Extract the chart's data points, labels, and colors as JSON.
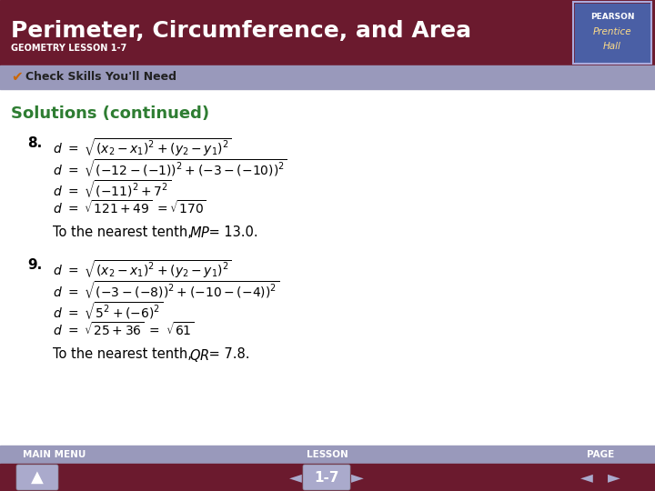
{
  "title": "Perimeter, Circumference, and Area",
  "subtitle": "GEOMETRY LESSON 1-7",
  "section_label": "Check Skills You'll Need",
  "solutions_title": "Solutions (continued)",
  "header_bg": "#6b1a2e",
  "header_text_color": "#ffffff",
  "subheader_bg": "#9999bb",
  "subheader_text_color": "#333333",
  "body_bg": "#ffffff",
  "solutions_title_color": "#2e7d32",
  "footer_bg": "#9999bb",
  "footer_bar_bg": "#6b1a2e",
  "footer_text_color": "#ffffff",
  "math_color": "#000000",
  "math_lines_8": [
    "$d\\ =\\ \\sqrt{(x_2 - x_1)^2 + (y_2 - y_1)^2}$",
    "$d\\ =\\ \\sqrt{(-12 - (-1))^2 + (-3 - (-10))^2}$",
    "$d\\ =\\ \\sqrt{(-11)^2 + 7^2}$",
    "$d\\ =\\ \\sqrt{121 + 49}\\ =\\sqrt{170}$"
  ],
  "note8": "To the nearest tenth, ",
  "note8_var": "$MP$",
  "note8_end": " = 13.0.",
  "math_lines_9": [
    "$d\\ =\\ \\sqrt{(x_2 - x_1)^2 + (y_2 - y_1)^2}$",
    "$d\\ =\\ \\sqrt{(-3 - (-8))^2 + (-10 - (-4))^2}$",
    "$d\\ =\\ \\sqrt{5^2 + (-6)^2}$",
    "$d\\ =\\ \\sqrt{25 + 36}\\ =\\ \\sqrt{61}$"
  ],
  "note9": "To the nearest tenth, ",
  "note9_var": "$QR$",
  "note9_end": " = 7.8.",
  "footer_labels": [
    "MAIN MENU",
    "LESSON",
    "PAGE"
  ],
  "page_label": "1-7",
  "num8": "8.",
  "num9": "9."
}
